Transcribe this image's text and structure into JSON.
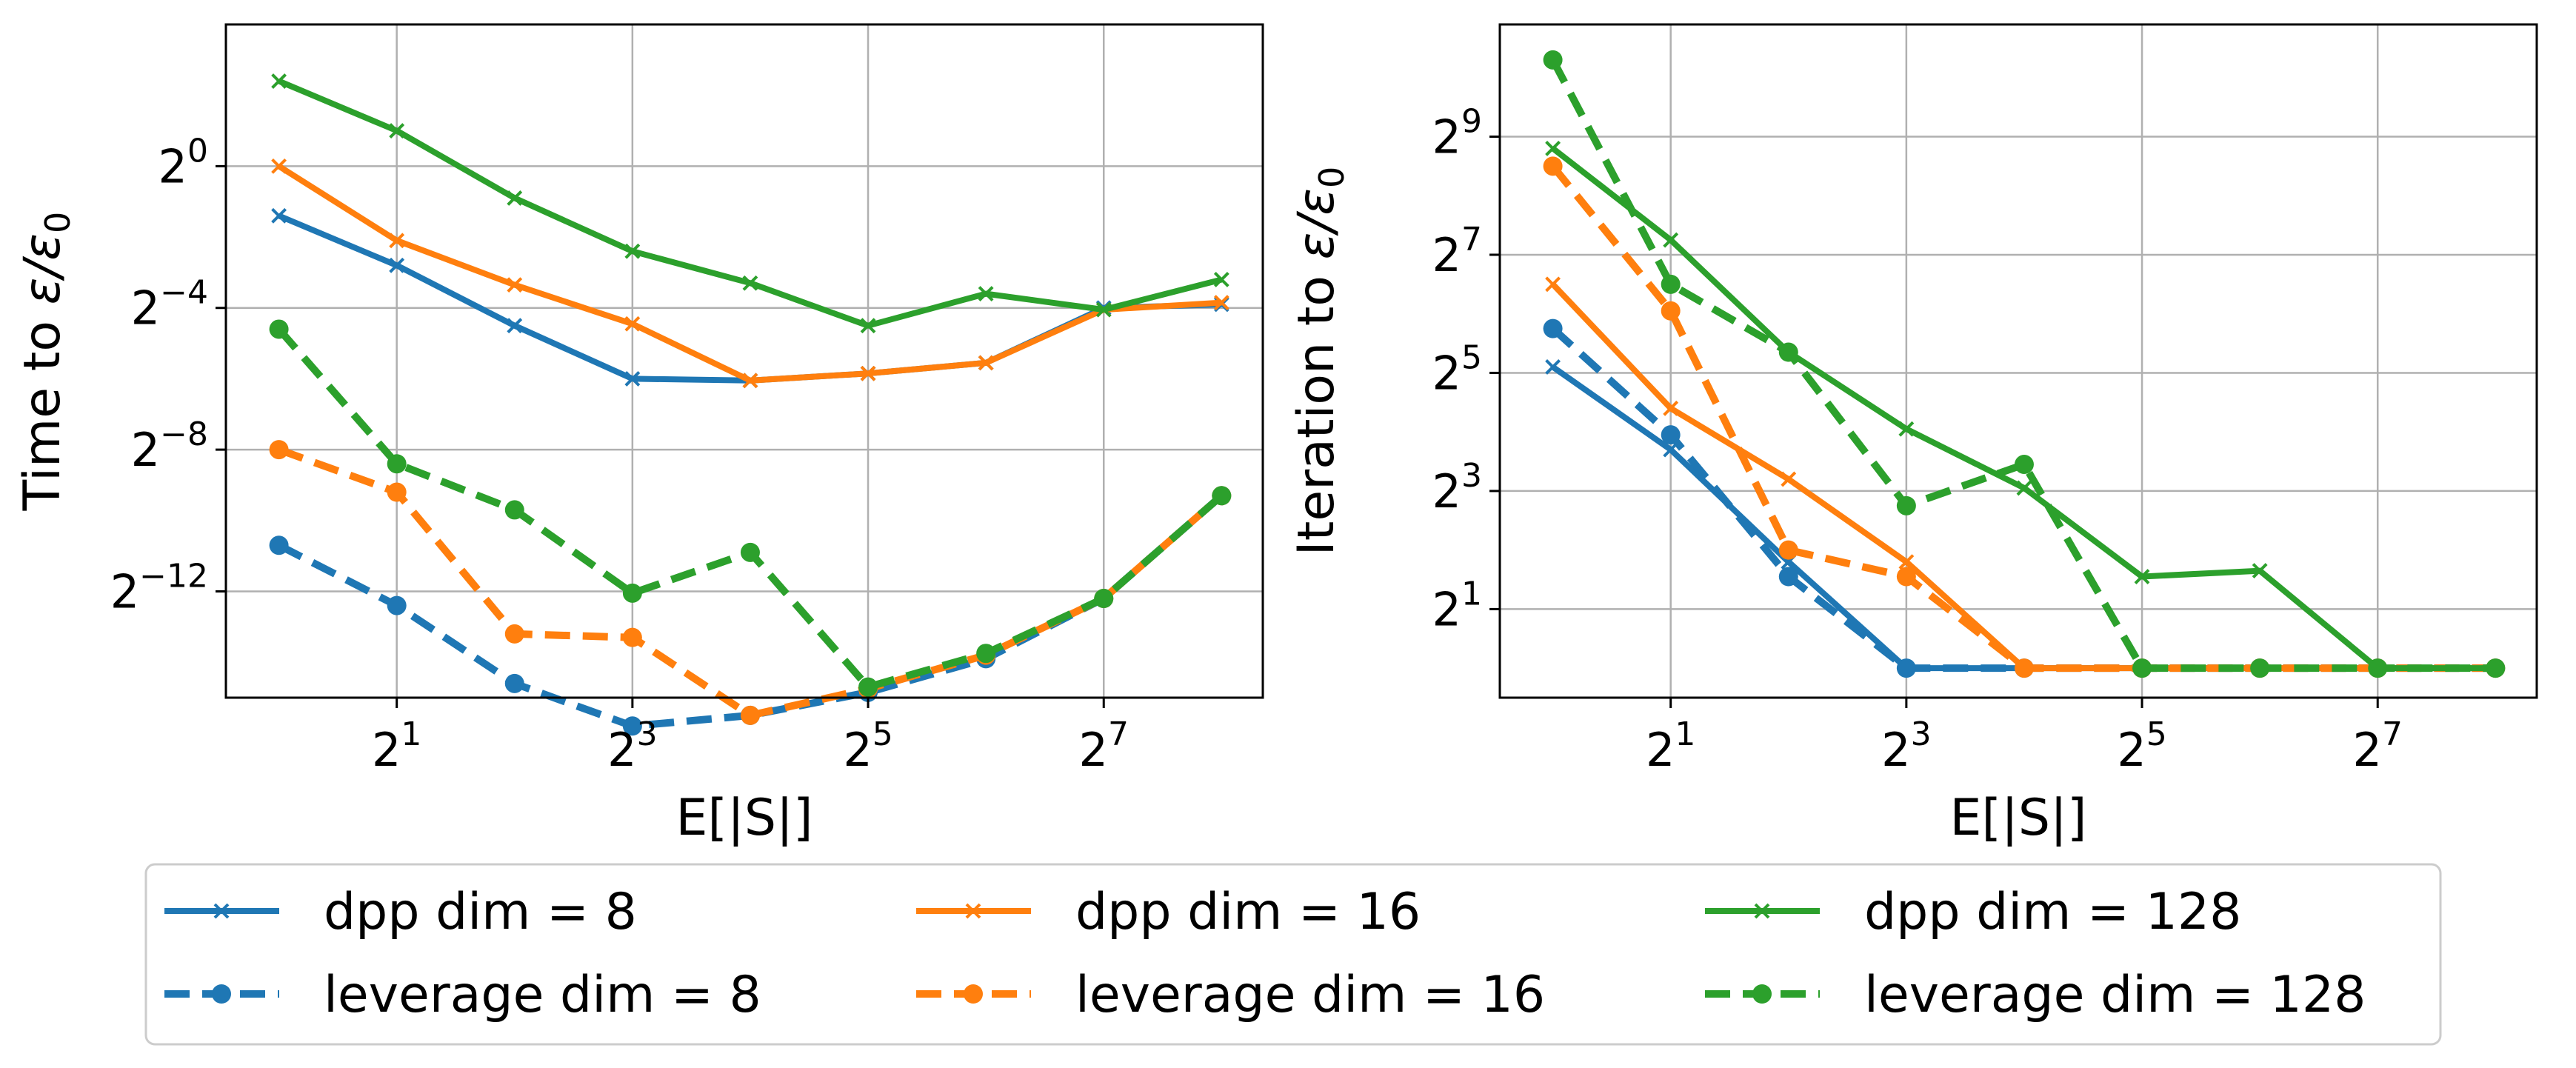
{
  "colors": {
    "blue": "#1f77b4",
    "orange": "#ff7f0e",
    "green": "#2ca02c",
    "grid": "#b0b0b0"
  },
  "chart_data": [
    {
      "type": "line",
      "xlabel": "E[|S|]",
      "ylabel_prefix": "Time to ",
      "ylabel_math": "ε/ε",
      "ylabel_sub": "0",
      "x_scale": "log2",
      "y_scale": "log2",
      "xlim_log2": [
        -0.45,
        8.35
      ],
      "ylim_log2": [
        -15.0,
        4.0
      ],
      "x_ticks": [
        {
          "base": "2",
          "exp": "1",
          "log2": 1
        },
        {
          "base": "2",
          "exp": "3",
          "log2": 3
        },
        {
          "base": "2",
          "exp": "5",
          "log2": 5
        },
        {
          "base": "2",
          "exp": "7",
          "log2": 7
        }
      ],
      "y_ticks": [
        {
          "base": "2",
          "exp": "0",
          "log2": 0
        },
        {
          "base": "2",
          "exp": "−4",
          "log2": -4
        },
        {
          "base": "2",
          "exp": "−8",
          "log2": -8
        },
        {
          "base": "2",
          "exp": "−12",
          "log2": -12
        }
      ],
      "x_log2": [
        0,
        1,
        2,
        3,
        4,
        5,
        6,
        7,
        8
      ],
      "series": [
        {
          "name": "dpp dim = 8",
          "color": "blue",
          "style": "solid",
          "marker": "x",
          "y_log2": [
            -1.4,
            -2.8,
            -4.5,
            -6.0,
            -6.05,
            -5.85,
            -5.55,
            -4.0,
            -3.9
          ]
        },
        {
          "name": "leverage dim = 8",
          "color": "blue",
          "style": "dashed",
          "marker": "o",
          "y_log2": [
            -10.7,
            -12.4,
            -14.6,
            -15.8,
            -15.5,
            -14.85,
            -13.9,
            -12.2,
            -9.3
          ]
        },
        {
          "name": "dpp dim = 16",
          "color": "orange",
          "style": "solid",
          "marker": "x",
          "y_log2": [
            0.0,
            -2.1,
            -3.35,
            -4.45,
            -6.05,
            -5.85,
            -5.55,
            -4.05,
            -3.85
          ]
        },
        {
          "name": "leverage dim = 16",
          "color": "orange",
          "style": "dashed",
          "marker": "o",
          "y_log2": [
            -8.0,
            -9.2,
            -13.2,
            -13.3,
            -15.5,
            -14.75,
            -13.8,
            -12.2,
            -9.3
          ]
        },
        {
          "name": "dpp dim = 128",
          "color": "green",
          "style": "solid",
          "marker": "x",
          "y_log2": [
            2.4,
            1.0,
            -0.9,
            -2.4,
            -3.3,
            -4.5,
            -3.6,
            -4.05,
            -3.2
          ]
        },
        {
          "name": "leverage dim = 128",
          "color": "green",
          "style": "dashed",
          "marker": "o",
          "y_log2": [
            -4.6,
            -8.4,
            -9.7,
            -12.05,
            -10.9,
            -14.7,
            -13.75,
            -12.2,
            -9.3
          ]
        }
      ]
    },
    {
      "type": "line",
      "xlabel": "E[|S|]",
      "ylabel_prefix": "Iteration to ",
      "ylabel_math": "ε/ε",
      "ylabel_sub": "0",
      "x_scale": "log2",
      "y_scale": "log2",
      "xlim_log2": [
        -0.45,
        8.35
      ],
      "ylim_log2": [
        -0.5,
        10.9
      ],
      "x_ticks": [
        {
          "base": "2",
          "exp": "1",
          "log2": 1
        },
        {
          "base": "2",
          "exp": "3",
          "log2": 3
        },
        {
          "base": "2",
          "exp": "5",
          "log2": 5
        },
        {
          "base": "2",
          "exp": "7",
          "log2": 7
        }
      ],
      "y_ticks": [
        {
          "base": "2",
          "exp": "9",
          "log2": 9
        },
        {
          "base": "2",
          "exp": "7",
          "log2": 7
        },
        {
          "base": "2",
          "exp": "5",
          "log2": 5
        },
        {
          "base": "2",
          "exp": "3",
          "log2": 3
        },
        {
          "base": "2",
          "exp": "1",
          "log2": 1
        }
      ],
      "x_log2": [
        0,
        1,
        2,
        3,
        4,
        5,
        6,
        7,
        8
      ],
      "series": [
        {
          "name": "dpp dim = 8",
          "color": "blue",
          "style": "solid",
          "marker": "x",
          "y_log2": [
            5.1,
            3.7,
            1.8,
            0.0,
            0.0,
            0.0,
            0.0,
            0.0,
            0.0
          ]
        },
        {
          "name": "leverage dim = 8",
          "color": "blue",
          "style": "dashed",
          "marker": "o",
          "y_log2": [
            5.75,
            3.95,
            1.55,
            0.0,
            0.0,
            0.0,
            0.0,
            0.0,
            0.0
          ]
        },
        {
          "name": "dpp dim = 16",
          "color": "orange",
          "style": "solid",
          "marker": "x",
          "y_log2": [
            6.5,
            4.4,
            3.2,
            1.8,
            0.0,
            0.0,
            0.0,
            0.0,
            0.0
          ]
        },
        {
          "name": "leverage dim = 16",
          "color": "orange",
          "style": "dashed",
          "marker": "o",
          "y_log2": [
            8.5,
            6.05,
            2.0,
            1.55,
            0.0,
            0.0,
            0.0,
            0.0,
            0.0
          ]
        },
        {
          "name": "dpp dim = 128",
          "color": "green",
          "style": "solid",
          "marker": "x",
          "y_log2": [
            8.8,
            7.25,
            5.35,
            4.05,
            3.05,
            1.55,
            1.65,
            0.0,
            0.0
          ]
        },
        {
          "name": "leverage dim = 128",
          "color": "green",
          "style": "dashed",
          "marker": "o",
          "y_log2": [
            10.3,
            6.5,
            5.35,
            2.75,
            3.45,
            0.0,
            0.0,
            0.0,
            0.0
          ]
        }
      ]
    }
  ],
  "legend": {
    "placement": "bottom-center",
    "entries": [
      {
        "label": "dpp dim = 8",
        "color": "blue",
        "style": "solid",
        "marker": "x"
      },
      {
        "label": "dpp dim = 16",
        "color": "orange",
        "style": "solid",
        "marker": "x"
      },
      {
        "label": "dpp dim = 128",
        "color": "green",
        "style": "solid",
        "marker": "x"
      },
      {
        "label": "leverage dim = 8",
        "color": "blue",
        "style": "dashed",
        "marker": "o"
      },
      {
        "label": "leverage dim = 16",
        "color": "orange",
        "style": "dashed",
        "marker": "o"
      },
      {
        "label": "leverage dim = 128",
        "color": "green",
        "style": "dashed",
        "marker": "o"
      }
    ]
  }
}
